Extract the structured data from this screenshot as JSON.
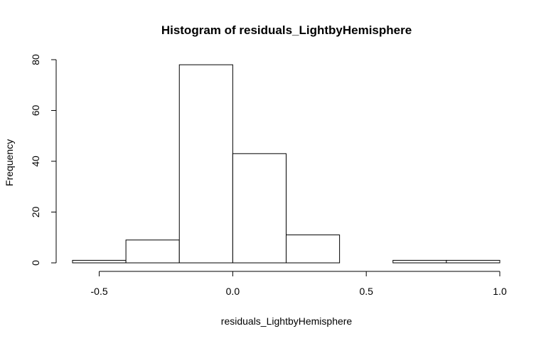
{
  "chart_data": {
    "type": "bar",
    "subtype": "histogram",
    "title": "Histogram of residuals_LightbyHemisphere",
    "xlabel": "residuals_LightbyHemisphere",
    "ylabel": "Frequency",
    "bins": [
      {
        "start": -0.6,
        "end": -0.4,
        "count": 1
      },
      {
        "start": -0.4,
        "end": -0.2,
        "count": 9
      },
      {
        "start": -0.2,
        "end": 0.0,
        "count": 78
      },
      {
        "start": 0.0,
        "end": 0.2,
        "count": 43
      },
      {
        "start": 0.2,
        "end": 0.4,
        "count": 11
      },
      {
        "start": 0.4,
        "end": 0.6,
        "count": 0
      },
      {
        "start": 0.6,
        "end": 0.8,
        "count": 1
      },
      {
        "start": 0.8,
        "end": 1.0,
        "count": 1
      }
    ],
    "x_ticks": [
      -0.5,
      0.0,
      0.5,
      1.0
    ],
    "x_tick_labels": [
      "-0.5",
      "0.0",
      "0.5",
      "1.0"
    ],
    "y_ticks": [
      0,
      20,
      40,
      60,
      80
    ],
    "y_tick_labels": [
      "0",
      "20",
      "40",
      "60",
      "80"
    ],
    "xlim": [
      -0.6,
      1.0
    ],
    "ylim": [
      0,
      80
    ],
    "grid": false,
    "legend": "none",
    "colors": {
      "bar_fill": "#ffffff",
      "bar_stroke": "#000000",
      "axis": "#000000"
    }
  }
}
